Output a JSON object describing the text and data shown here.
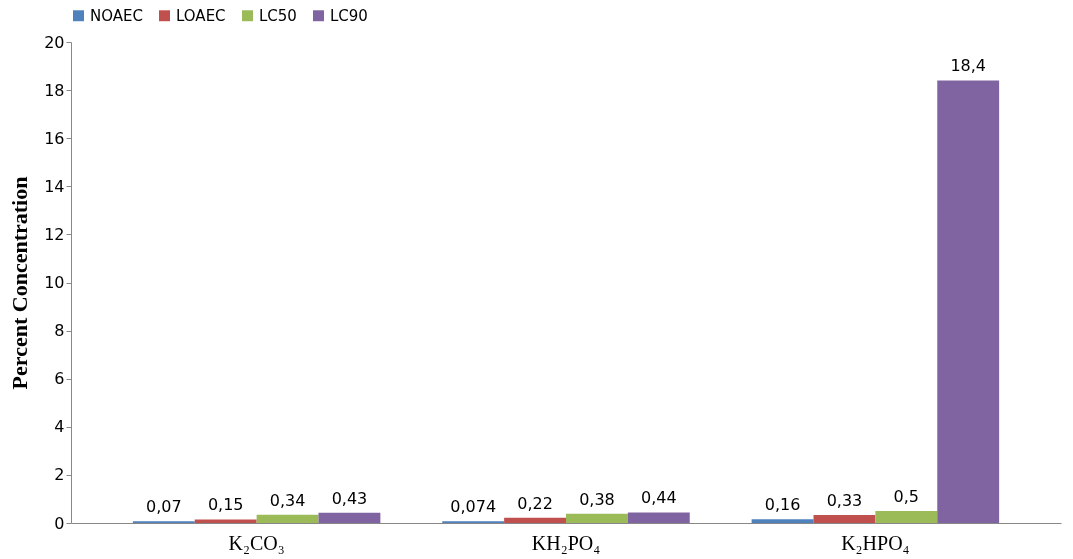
{
  "chart_data": {
    "type": "bar",
    "categories": [
      "K₂CO₃",
      "KH₂PO₄",
      "K₂HPO₄"
    ],
    "ylabel": "Percent Concentration",
    "ylim": [
      0,
      20
    ],
    "yticks": [
      0,
      2,
      4,
      6,
      8,
      10,
      12,
      14,
      16,
      18,
      20
    ],
    "grid": false,
    "legend": "top",
    "series": [
      {
        "name": "NOAEC",
        "color": "#4f81bd",
        "values": [
          0.07,
          0.074,
          0.16
        ],
        "value_labels": [
          "0,07",
          "0,074",
          "0,16"
        ]
      },
      {
        "name": "LOAEC",
        "color": "#c0504d",
        "values": [
          0.15,
          0.22,
          0.33
        ],
        "value_labels": [
          "0,15",
          "0,22",
          "0,33"
        ]
      },
      {
        "name": "LC50",
        "color": "#9bbb59",
        "values": [
          0.34,
          0.38,
          0.5
        ],
        "value_labels": [
          "0,34",
          "0,38",
          "0,5"
        ]
      },
      {
        "name": "LC90",
        "color": "#8064a2",
        "values": [
          0.43,
          0.44,
          18.4
        ],
        "value_labels": [
          "0,43",
          "0,44",
          "18,4"
        ]
      }
    ]
  }
}
